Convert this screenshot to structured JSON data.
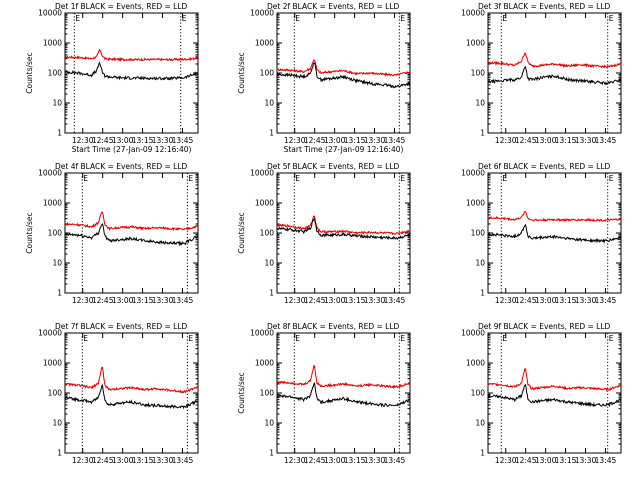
{
  "colors": {
    "events": "#000000",
    "lld": "#e00000",
    "axis": "#000000",
    "background": "#ffffff"
  },
  "chart_data": [
    {
      "type": "line",
      "title": "Det 1f BLACK = Events, RED = LLD",
      "flags": [
        "E",
        "E"
      ],
      "xlabel": "Start Time (27-Jan-09 12:16:40)",
      "ylabel": "Counts/sec",
      "yscale": "log",
      "ylim": [
        1,
        10000
      ],
      "ytick_labels": [
        "1",
        "10",
        "100",
        "1000",
        "10000"
      ],
      "xtick_labels": [
        "12:30",
        "12:45",
        "13:00",
        "13:15",
        "13:30",
        "13:45"
      ],
      "xticks_min": [
        13.33,
        28.33,
        43.33,
        58.33,
        73.33,
        88.33
      ],
      "xlim_min": [
        0,
        100
      ],
      "event_markers_min": [
        7,
        87
      ],
      "series": [
        {
          "key": "lld",
          "x": [
            0,
            10,
            20,
            24,
            26,
            28,
            30,
            33,
            40,
            50,
            60,
            70,
            80,
            90,
            97,
            100
          ],
          "values": [
            340,
            330,
            300,
            350,
            600,
            380,
            300,
            290,
            285,
            280,
            282,
            280,
            280,
            285,
            300,
            360
          ]
        },
        {
          "key": "events",
          "x": [
            0,
            10,
            20,
            24,
            26,
            28,
            30,
            33,
            40,
            50,
            60,
            70,
            80,
            90,
            97,
            100
          ],
          "values": [
            110,
            100,
            85,
            120,
            230,
            105,
            80,
            75,
            70,
            68,
            67,
            66,
            66,
            70,
            90,
            105
          ]
        }
      ]
    },
    {
      "type": "line",
      "title": "Det 2f BLACK = Events, RED = LLD",
      "flags": [
        "E",
        "E"
      ],
      "xlabel": "Start Time (27-Jan-09 12:16:40)",
      "ylabel": "Counts/sec",
      "yscale": "log",
      "ylim": [
        1,
        10000
      ],
      "ytick_labels": [
        "1",
        "10",
        "100",
        "1000",
        "10000"
      ],
      "xtick_labels": [
        "12:30",
        "12:45",
        "13:00",
        "13:15",
        "13:30",
        "13:45"
      ],
      "xticks_min": [
        13.33,
        28.33,
        43.33,
        58.33,
        73.33,
        88.33
      ],
      "xlim_min": [
        0,
        100
      ],
      "event_markers_min": [
        13,
        92
      ],
      "series": [
        {
          "key": "lld",
          "x": [
            0,
            10,
            20,
            25,
            28,
            30,
            33,
            40,
            50,
            60,
            70,
            80,
            90,
            100
          ],
          "values": [
            130,
            125,
            110,
            140,
            300,
            130,
            100,
            110,
            120,
            95,
            100,
            90,
            85,
            110
          ]
        },
        {
          "key": "events",
          "x": [
            0,
            10,
            20,
            25,
            28,
            30,
            33,
            40,
            50,
            60,
            70,
            80,
            90,
            100
          ],
          "values": [
            90,
            85,
            75,
            95,
            250,
            80,
            60,
            65,
            75,
            55,
            45,
            40,
            35,
            45
          ]
        }
      ]
    },
    {
      "type": "line",
      "title": "Det 3f BLACK = Events, RED = LLD",
      "flags": [
        "E",
        "E"
      ],
      "xlabel": "",
      "ylabel": "",
      "yscale": "log",
      "ylim": [
        1,
        10000
      ],
      "ytick_labels": [
        "1",
        "10",
        "100",
        "1000",
        "10000"
      ],
      "xtick_labels": [
        "12:30",
        "12:45",
        "13:00",
        "13:15",
        "13:30",
        "13:45"
      ],
      "xticks_min": [
        13.33,
        28.33,
        43.33,
        58.33,
        73.33,
        88.33
      ],
      "xlim_min": [
        0,
        100
      ],
      "event_markers_min": [
        10,
        90
      ],
      "series": [
        {
          "key": "lld",
          "x": [
            0,
            10,
            20,
            25,
            28,
            30,
            33,
            40,
            50,
            60,
            70,
            80,
            90,
            100
          ],
          "values": [
            220,
            210,
            180,
            240,
            500,
            230,
            170,
            180,
            200,
            170,
            190,
            170,
            160,
            200
          ]
        },
        {
          "key": "events",
          "x": [
            0,
            10,
            20,
            25,
            28,
            30,
            33,
            40,
            50,
            60,
            70,
            80,
            90,
            100
          ],
          "values": [
            50,
            55,
            60,
            70,
            180,
            65,
            60,
            70,
            80,
            60,
            55,
            50,
            45,
            60
          ]
        }
      ]
    },
    {
      "type": "line",
      "title": "Det 4f BLACK = Events, RED = LLD",
      "flags": [
        "E",
        "E"
      ],
      "xlabel": "",
      "ylabel": "Counts/sec",
      "yscale": "log",
      "ylim": [
        1,
        10000
      ],
      "ytick_labels": [
        "1",
        "10",
        "100",
        "1000",
        "10000"
      ],
      "xtick_labels": [
        "12:30",
        "12:45",
        "13:00",
        "13:15",
        "13:30",
        "13:45"
      ],
      "xticks_min": [
        13.33,
        28.33,
        43.33,
        58.33,
        73.33,
        88.33
      ],
      "xlim_min": [
        0,
        100
      ],
      "event_markers_min": [
        13,
        92
      ],
      "series": [
        {
          "key": "lld",
          "x": [
            0,
            10,
            20,
            25,
            28,
            30,
            33,
            40,
            50,
            60,
            70,
            80,
            90,
            100
          ],
          "values": [
            200,
            190,
            160,
            220,
            550,
            200,
            140,
            150,
            160,
            140,
            150,
            140,
            130,
            170
          ]
        },
        {
          "key": "events",
          "x": [
            0,
            10,
            20,
            25,
            28,
            30,
            33,
            40,
            50,
            60,
            70,
            80,
            90,
            100
          ],
          "values": [
            90,
            85,
            70,
            100,
            220,
            80,
            55,
            60,
            65,
            55,
            50,
            45,
            45,
            80
          ]
        }
      ]
    },
    {
      "type": "line",
      "title": "Det 5f BLACK = Events, RED = LLD",
      "flags": [
        "E",
        "E"
      ],
      "xlabel": "",
      "ylabel": "Counts/sec",
      "yscale": "log",
      "ylim": [
        1,
        10000
      ],
      "ytick_labels": [
        "1",
        "10",
        "100",
        "1000",
        "10000"
      ],
      "xtick_labels": [
        "12:30",
        "12:45",
        "13:00",
        "13:15",
        "13:30",
        "13:45"
      ],
      "xticks_min": [
        13.33,
        28.33,
        43.33,
        58.33,
        73.33,
        88.33
      ],
      "xlim_min": [
        0,
        100
      ],
      "event_markers_min": [
        13,
        92
      ],
      "series": [
        {
          "key": "lld",
          "x": [
            0,
            10,
            20,
            25,
            28,
            30,
            33,
            40,
            50,
            60,
            70,
            80,
            90,
            100
          ],
          "values": [
            180,
            170,
            140,
            170,
            400,
            150,
            110,
            110,
            115,
            100,
            105,
            100,
            95,
            120
          ]
        },
        {
          "key": "events",
          "x": [
            0,
            10,
            20,
            25,
            28,
            30,
            33,
            40,
            50,
            60,
            70,
            80,
            90,
            100
          ],
          "values": [
            140,
            130,
            110,
            140,
            330,
            120,
            85,
            85,
            90,
            80,
            75,
            70,
            68,
            85
          ]
        }
      ]
    },
    {
      "type": "line",
      "title": "Det 6f BLACK = Events, RED = LLD",
      "flags": [
        "E",
        "E"
      ],
      "xlabel": "",
      "ylabel": "",
      "yscale": "log",
      "ylim": [
        1,
        10000
      ],
      "ytick_labels": [
        "1",
        "10",
        "100",
        "1000",
        "10000"
      ],
      "xtick_labels": [
        "12:30",
        "12:45",
        "13:00",
        "13:15",
        "13:30",
        "13:45"
      ],
      "xticks_min": [
        13.33,
        28.33,
        43.33,
        58.33,
        73.33,
        88.33
      ],
      "xlim_min": [
        0,
        100
      ],
      "event_markers_min": [
        10,
        90
      ],
      "series": [
        {
          "key": "lld",
          "x": [
            0,
            10,
            20,
            25,
            28,
            30,
            33,
            40,
            50,
            60,
            70,
            80,
            90,
            100
          ],
          "values": [
            320,
            310,
            280,
            320,
            550,
            310,
            270,
            270,
            280,
            270,
            275,
            270,
            265,
            290
          ]
        },
        {
          "key": "events",
          "x": [
            0,
            10,
            20,
            25,
            28,
            30,
            33,
            40,
            50,
            60,
            70,
            80,
            90,
            100
          ],
          "values": [
            90,
            85,
            75,
            100,
            200,
            80,
            65,
            70,
            75,
            65,
            60,
            55,
            55,
            70
          ]
        }
      ]
    },
    {
      "type": "line",
      "title": "Det 7f BLACK = Events, RED = LLD",
      "flags": [
        "E",
        "E"
      ],
      "xlabel": "",
      "ylabel": "",
      "yscale": "log",
      "ylim": [
        1,
        10000
      ],
      "ytick_labels": [
        "1",
        "10",
        "100",
        "1000",
        "10000"
      ],
      "xtick_labels": [
        "12:30",
        "12:45",
        "13:00",
        "13:15",
        "13:30",
        "13:45"
      ],
      "xticks_min": [
        13.33,
        28.33,
        43.33,
        58.33,
        73.33,
        88.33
      ],
      "xlim_min": [
        0,
        100
      ],
      "event_markers_min": [
        13,
        92
      ],
      "series": [
        {
          "key": "lld",
          "x": [
            0,
            10,
            20,
            25,
            28,
            30,
            33,
            40,
            50,
            60,
            70,
            80,
            90,
            100
          ],
          "values": [
            200,
            180,
            150,
            210,
            800,
            180,
            130,
            140,
            150,
            130,
            140,
            120,
            110,
            160
          ]
        },
        {
          "key": "events",
          "x": [
            0,
            10,
            20,
            25,
            28,
            30,
            33,
            40,
            50,
            60,
            70,
            80,
            90,
            100
          ],
          "values": [
            70,
            60,
            50,
            70,
            200,
            55,
            40,
            45,
            50,
            40,
            38,
            35,
            35,
            55
          ]
        }
      ]
    },
    {
      "type": "line",
      "title": "Det 8f BLACK = Events, RED = LLD",
      "flags": [
        "E",
        "E"
      ],
      "xlabel": "",
      "ylabel": "Counts/sec",
      "yscale": "log",
      "ylim": [
        1,
        10000
      ],
      "ytick_labels": [
        "1",
        "10",
        "100",
        "1000",
        "10000"
      ],
      "xtick_labels": [
        "12:30",
        "12:45",
        "13:00",
        "13:15",
        "13:30",
        "13:45"
      ],
      "xticks_min": [
        13.33,
        28.33,
        43.33,
        58.33,
        73.33,
        88.33
      ],
      "xlim_min": [
        0,
        100
      ],
      "event_markers_min": [
        13,
        92
      ],
      "series": [
        {
          "key": "lld",
          "x": [
            0,
            10,
            20,
            25,
            28,
            30,
            33,
            40,
            50,
            60,
            70,
            80,
            90,
            100
          ],
          "values": [
            230,
            220,
            190,
            250,
            900,
            220,
            170,
            180,
            200,
            170,
            190,
            170,
            160,
            210
          ]
        },
        {
          "key": "events",
          "x": [
            0,
            10,
            20,
            25,
            28,
            30,
            33,
            40,
            50,
            60,
            70,
            80,
            90,
            100
          ],
          "values": [
            80,
            75,
            60,
            80,
            230,
            65,
            50,
            55,
            65,
            50,
            45,
            40,
            38,
            60
          ]
        }
      ]
    },
    {
      "type": "line",
      "title": "Det 9f BLACK = Events, RED = LLD",
      "flags": [
        "E",
        "E"
      ],
      "xlabel": "",
      "ylabel": "",
      "yscale": "log",
      "ylim": [
        1,
        10000
      ],
      "ytick_labels": [
        "1",
        "10",
        "100",
        "1000",
        "10000"
      ],
      "xtick_labels": [
        "12:30",
        "12:45",
        "13:00",
        "13:15",
        "13:30",
        "13:45"
      ],
      "xticks_min": [
        13.33,
        28.33,
        43.33,
        58.33,
        73.33,
        88.33
      ],
      "xlim_min": [
        0,
        100
      ],
      "event_markers_min": [
        10,
        90
      ],
      "series": [
        {
          "key": "lld",
          "x": [
            0,
            10,
            20,
            25,
            28,
            30,
            33,
            40,
            50,
            60,
            70,
            80,
            90,
            100
          ],
          "values": [
            200,
            190,
            160,
            210,
            700,
            190,
            140,
            150,
            170,
            140,
            150,
            140,
            130,
            180
          ]
        },
        {
          "key": "events",
          "x": [
            0,
            10,
            20,
            25,
            28,
            30,
            33,
            40,
            50,
            60,
            70,
            80,
            90,
            100
          ],
          "values": [
            80,
            75,
            60,
            80,
            200,
            65,
            50,
            55,
            60,
            50,
            45,
            40,
            40,
            60
          ]
        }
      ]
    }
  ]
}
